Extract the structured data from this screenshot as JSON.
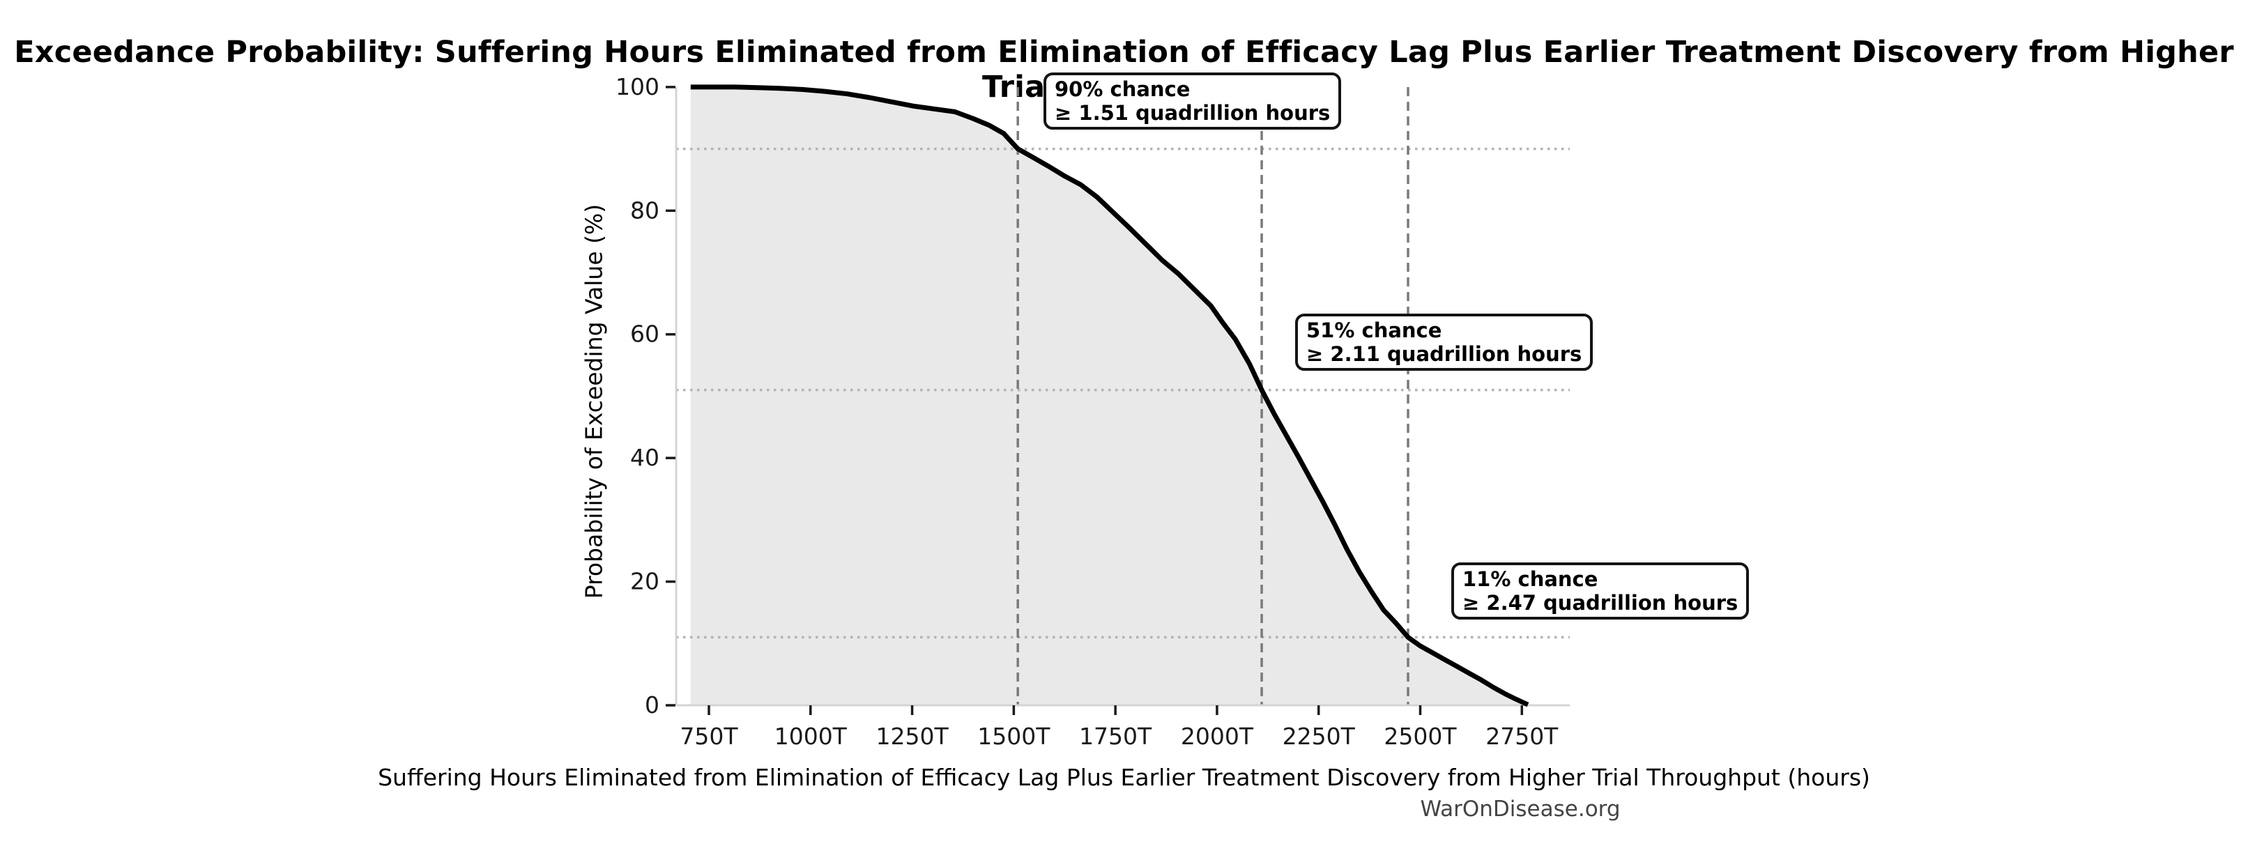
{
  "chart_data": {
    "type": "area",
    "title": "Exceedance Probability: Suffering Hours Eliminated from Elimination of Efficacy Lag Plus Earlier Treatment Discovery from Higher Trial Throughput",
    "xlabel": "Suffering Hours Eliminated from Elimination of Efficacy Lag Plus Earlier Treatment Discovery from Higher Trial Throughput (hours)",
    "ylabel": "Probability of Exceeding Value (%)",
    "source": "WarOnDisease.org",
    "x_ticks": [
      {
        "value_trillions": 750,
        "label": "750T"
      },
      {
        "value_trillions": 1000,
        "label": "1000T"
      },
      {
        "value_trillions": 1250,
        "label": "1250T"
      },
      {
        "value_trillions": 1500,
        "label": "1500T"
      },
      {
        "value_trillions": 1750,
        "label": "1750T"
      },
      {
        "value_trillions": 2000,
        "label": "2000T"
      },
      {
        "value_trillions": 2250,
        "label": "2250T"
      },
      {
        "value_trillions": 2500,
        "label": "2500T"
      },
      {
        "value_trillions": 2750,
        "label": "2750T"
      }
    ],
    "y_ticks": [
      0,
      20,
      40,
      60,
      80,
      100
    ],
    "xlim_trillions": [
      669,
      2873
    ],
    "ylim": [
      0,
      100
    ],
    "grid": "reference lines only",
    "legend": "none",
    "series": [
      {
        "name": "Exceedance probability",
        "points_T_pct": [
          [
            705,
            100
          ],
          [
            760,
            100
          ],
          [
            815,
            100
          ],
          [
            870,
            99.9
          ],
          [
            925,
            99.8
          ],
          [
            980,
            99.6
          ],
          [
            1035,
            99.3
          ],
          [
            1090,
            98.9
          ],
          [
            1145,
            98.3
          ],
          [
            1200,
            97.6
          ],
          [
            1255,
            96.9
          ],
          [
            1310,
            96.4
          ],
          [
            1355,
            96.0
          ],
          [
            1400,
            94.9
          ],
          [
            1440,
            93.8
          ],
          [
            1475,
            92.5
          ],
          [
            1510,
            90.0
          ],
          [
            1545,
            88.7
          ],
          [
            1585,
            87.2
          ],
          [
            1625,
            85.6
          ],
          [
            1665,
            84.2
          ],
          [
            1705,
            82.2
          ],
          [
            1745,
            79.7
          ],
          [
            1785,
            77.2
          ],
          [
            1825,
            74.6
          ],
          [
            1865,
            72.0
          ],
          [
            1905,
            69.8
          ],
          [
            1945,
            67.2
          ],
          [
            1985,
            64.6
          ],
          [
            2015,
            61.8
          ],
          [
            2045,
            59.2
          ],
          [
            2080,
            55.2
          ],
          [
            2110,
            51.0
          ],
          [
            2140,
            47.2
          ],
          [
            2170,
            43.7
          ],
          [
            2200,
            40.2
          ],
          [
            2230,
            36.6
          ],
          [
            2260,
            33.0
          ],
          [
            2290,
            29.2
          ],
          [
            2320,
            25.2
          ],
          [
            2350,
            21.6
          ],
          [
            2380,
            18.4
          ],
          [
            2410,
            15.4
          ],
          [
            2440,
            13.3
          ],
          [
            2470,
            11.0
          ],
          [
            2500,
            9.6
          ],
          [
            2530,
            8.5
          ],
          [
            2560,
            7.4
          ],
          [
            2590,
            6.3
          ],
          [
            2620,
            5.2
          ],
          [
            2650,
            4.1
          ],
          [
            2680,
            2.9
          ],
          [
            2710,
            1.8
          ],
          [
            2735,
            1.0
          ],
          [
            2755,
            0.4
          ],
          [
            2765,
            0.1
          ]
        ]
      }
    ],
    "markers": [
      {
        "pct": 90,
        "value_trillions": 1510,
        "line1": "90% chance",
        "line2": "≥ 1.51 quadrillion hours"
      },
      {
        "pct": 51,
        "value_trillions": 2110,
        "line1": "51% chance",
        "line2": "≥ 2.11 quadrillion hours"
      },
      {
        "pct": 11,
        "value_trillions": 2470,
        "line1": "11% chance",
        "line2": "≥ 2.47 quadrillion hours"
      }
    ],
    "colors": {
      "curve": "#000000",
      "fill": "#e9e9e9",
      "dashed_reference_line": "#7a7a7a",
      "dotted_reference_line": "#b3b3b3",
      "axis_spine": "#d4d4d4",
      "tick_mark": "#1a1a1a",
      "source_text": "#444444",
      "annotation_border": "#141414"
    }
  }
}
